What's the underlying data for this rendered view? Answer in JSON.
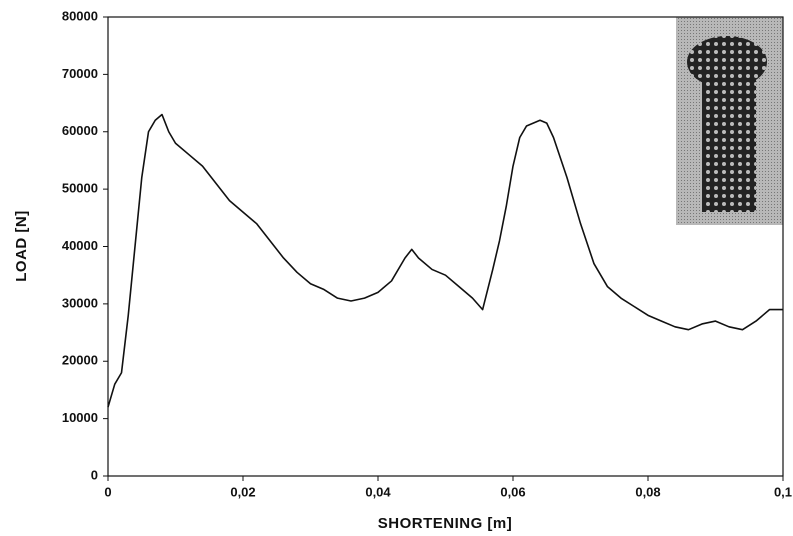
{
  "chart_data": {
    "type": "line",
    "xlabel": "SHORTENING  [m]",
    "ylabel": "LOAD [N]",
    "color": "#111111",
    "grid": false,
    "xlim": [
      0,
      0.1
    ],
    "ylim": [
      0,
      80000
    ],
    "xticks": [
      0,
      {
        "value": 0.02,
        "label": "0,02"
      },
      {
        "value": 0.04,
        "label": "0,04"
      },
      {
        "value": 0.06,
        "label": "0,06"
      },
      {
        "value": 0.08,
        "label": "0,08"
      },
      {
        "value": 0.1,
        "label": "0,1"
      }
    ],
    "yticks": [
      0,
      10000,
      20000,
      30000,
      40000,
      50000,
      60000,
      70000,
      80000
    ],
    "x": [
      0,
      0.001,
      0.002,
      0.003,
      0.004,
      0.005,
      0.006,
      0.007,
      0.008,
      0.009,
      0.01,
      0.012,
      0.014,
      0.016,
      0.018,
      0.02,
      0.022,
      0.024,
      0.026,
      0.028,
      0.03,
      0.032,
      0.034,
      0.036,
      0.038,
      0.04,
      0.042,
      0.044,
      0.045,
      0.046,
      0.048,
      0.05,
      0.052,
      0.054,
      0.0555,
      0.057,
      0.058,
      0.059,
      0.06,
      0.061,
      0.062,
      0.064,
      0.065,
      0.066,
      0.068,
      0.07,
      0.072,
      0.074,
      0.076,
      0.078,
      0.08,
      0.082,
      0.084,
      0.086,
      0.088,
      0.09,
      0.092,
      0.094,
      0.096,
      0.098,
      0.1
    ],
    "values": [
      12000,
      16000,
      18000,
      28000,
      40000,
      52000,
      60000,
      62000,
      63000,
      60000,
      58000,
      56000,
      54000,
      51000,
      48000,
      46000,
      44000,
      41000,
      38000,
      35500,
      33500,
      32500,
      31000,
      30500,
      31000,
      32000,
      34000,
      38000,
      39500,
      38000,
      36000,
      35000,
      33000,
      31000,
      29000,
      36000,
      41000,
      47000,
      54000,
      59000,
      61000,
      62000,
      61500,
      59000,
      52000,
      44000,
      37000,
      33000,
      31000,
      29500,
      28000,
      27000,
      26000,
      25500,
      26500,
      27000,
      26000,
      25500,
      27000,
      29000,
      29000
    ]
  }
}
